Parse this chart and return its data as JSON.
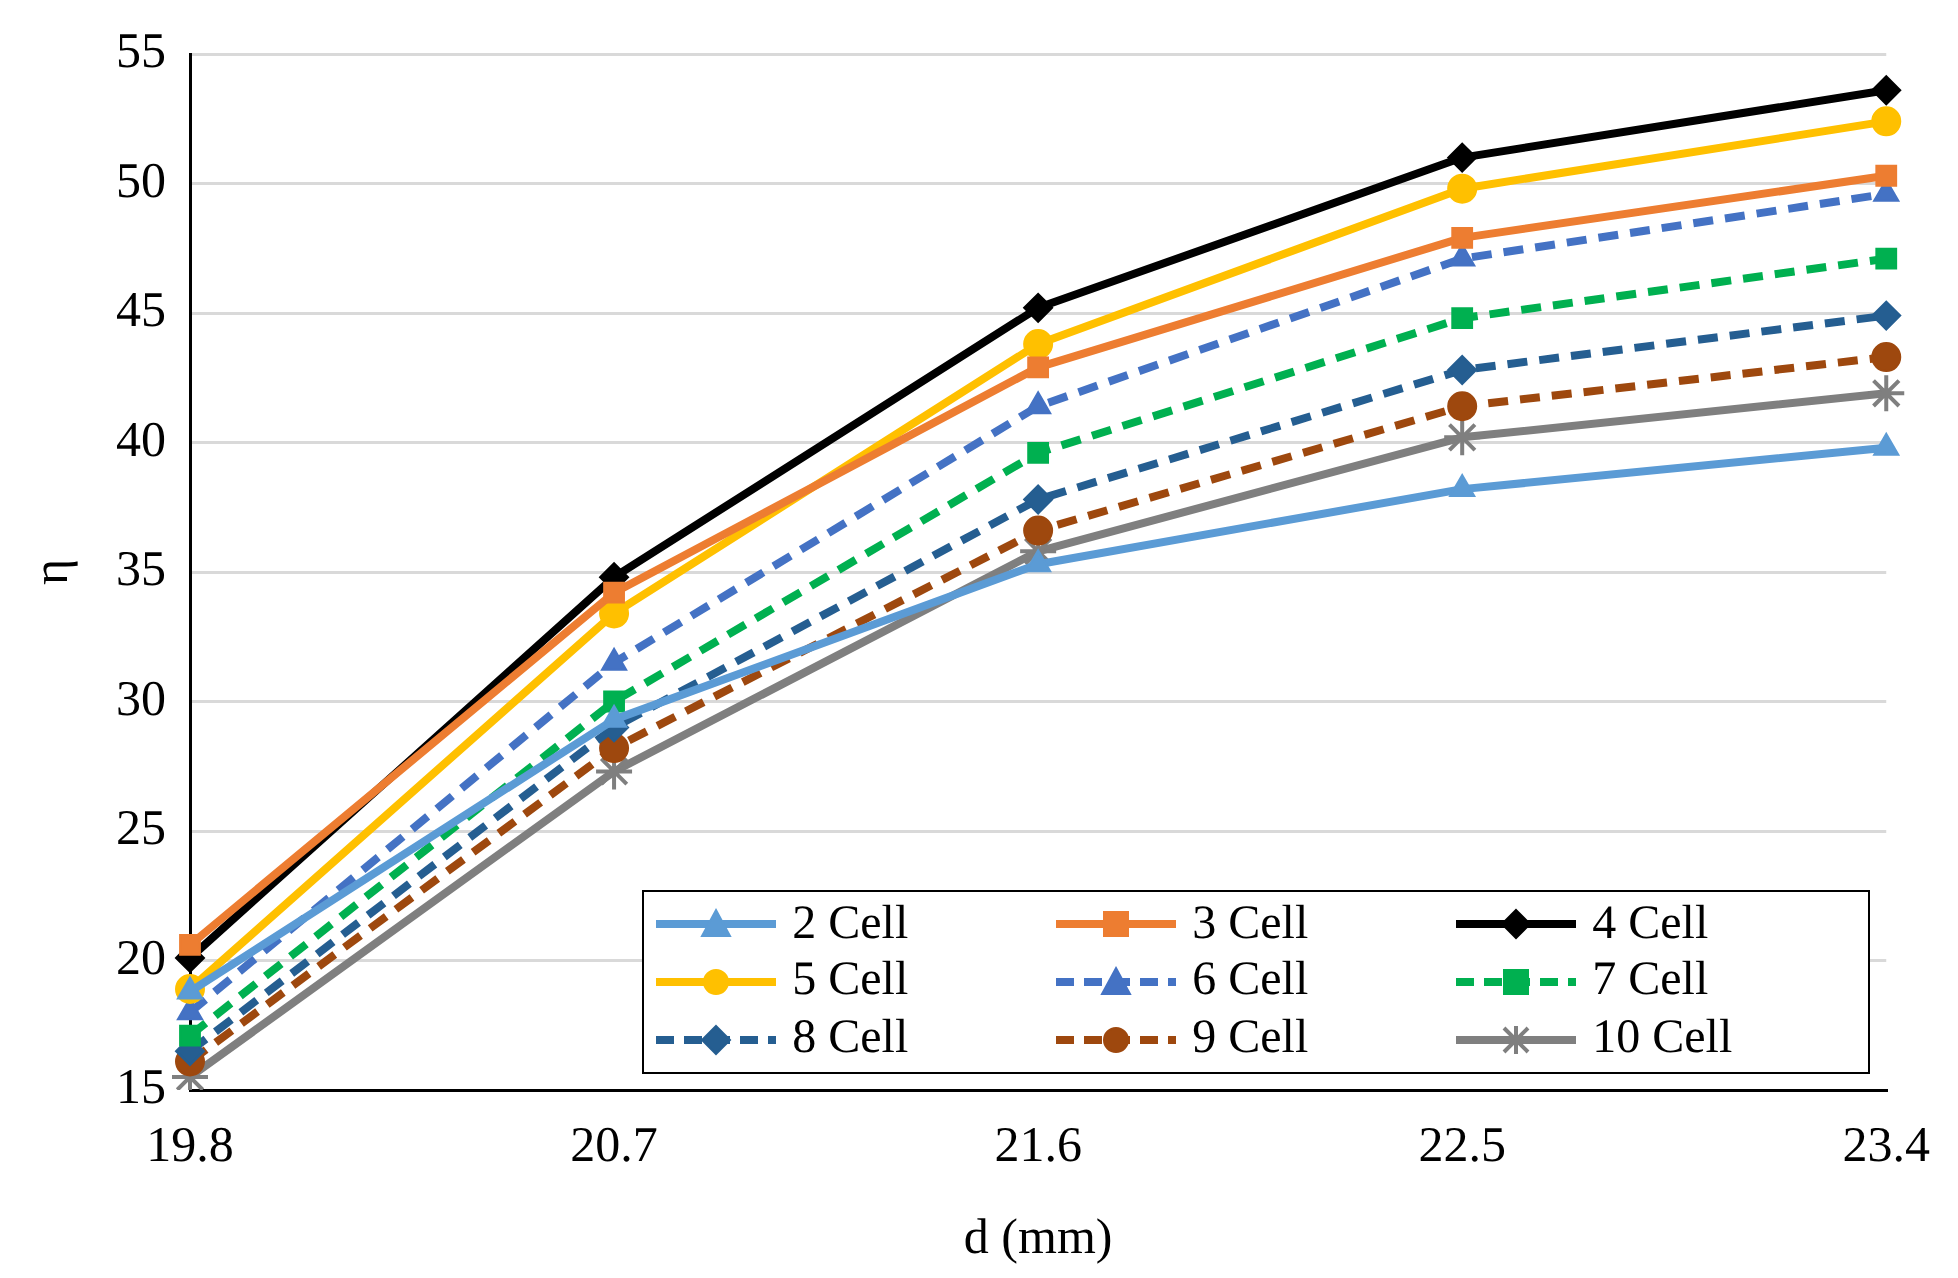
{
  "chart_data": {
    "type": "line",
    "xlabel": "d (mm)",
    "ylabel": "η",
    "categories": [
      "19.8",
      "20.7",
      "21.6",
      "22.5",
      "23.4"
    ],
    "ylim": [
      15,
      55
    ],
    "yticks": [
      15,
      20,
      25,
      30,
      35,
      40,
      45,
      50,
      55
    ],
    "grid": "y",
    "legend": "bottom right",
    "series": [
      {
        "name": "2 Cell",
        "color": "#5b9bd5",
        "marker": "triangle",
        "line_style": "solid",
        "values": [
          18.8,
          29.3,
          35.3,
          38.2,
          39.8
        ]
      },
      {
        "name": "3 Cell",
        "color": "#ed7d31",
        "marker": "square",
        "line_style": "solid",
        "values": [
          20.6,
          34.2,
          42.9,
          47.9,
          50.3
        ]
      },
      {
        "name": "4 Cell",
        "color": "#000000",
        "marker": "diamond",
        "line_style": "solid",
        "values": [
          20.1,
          34.8,
          45.2,
          51.0,
          53.6
        ]
      },
      {
        "name": "5 Cell",
        "color": "#ffc000",
        "marker": "circle",
        "line_style": "solid",
        "values": [
          18.9,
          33.4,
          43.8,
          49.8,
          52.4
        ]
      },
      {
        "name": "6 Cell",
        "color": "#4472c4",
        "marker": "triangle",
        "line_style": "dashed",
        "values": [
          18.0,
          31.5,
          41.4,
          47.1,
          49.6
        ]
      },
      {
        "name": "7 Cell",
        "color": "#00b050",
        "marker": "square",
        "line_style": "dashed",
        "values": [
          17.1,
          30.0,
          39.6,
          44.8,
          47.1
        ]
      },
      {
        "name": "8 Cell",
        "color": "#255e91",
        "marker": "diamond",
        "line_style": "dashed",
        "values": [
          16.5,
          29.0,
          37.8,
          42.8,
          44.9
        ]
      },
      {
        "name": "9 Cell",
        "color": "#9e480e",
        "marker": "circle",
        "line_style": "dashed",
        "values": [
          16.1,
          28.2,
          36.6,
          41.4,
          43.3
        ]
      },
      {
        "name": "10 Cell",
        "color": "#7f7f7f",
        "marker": "cross",
        "line_style": "solid",
        "values": [
          15.5,
          27.3,
          35.8,
          40.2,
          41.9
        ]
      }
    ]
  }
}
